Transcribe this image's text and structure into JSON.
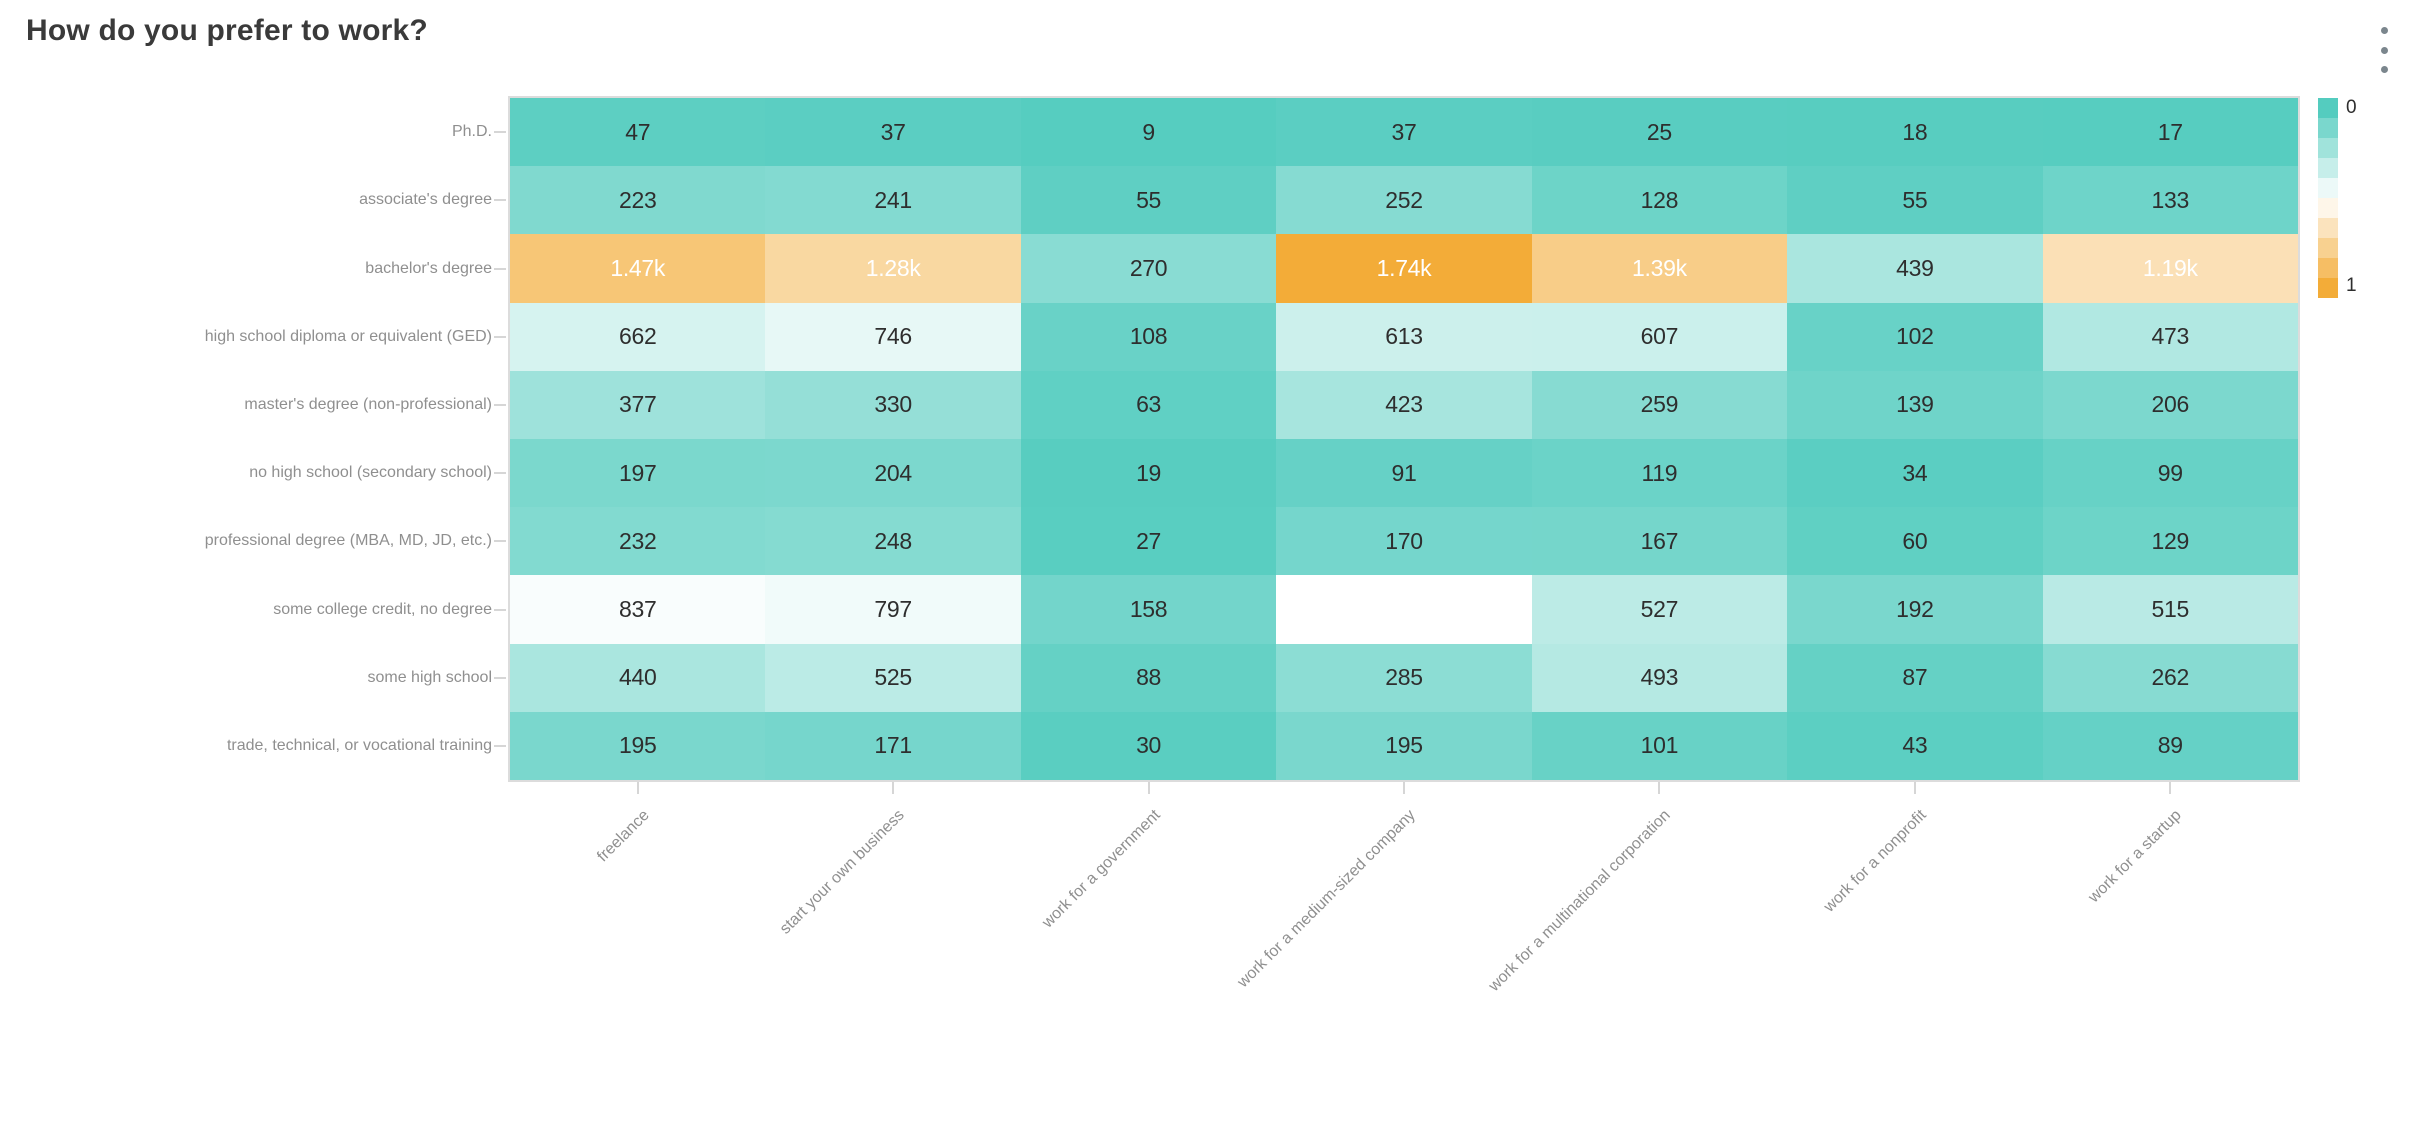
{
  "header": {
    "title": "How do you prefer to work?",
    "menu_icon": "kebab-menu-icon"
  },
  "chart_data": {
    "type": "heatmap",
    "title": "How do you prefer to work?",
    "xlabel": "",
    "ylabel": "",
    "grid": false,
    "legend_position": "right",
    "x_categories": [
      "freelance",
      "start your own business",
      "work for a government",
      "work for a medium-sized company",
      "work for a multinational corporation",
      "work for a nonprofit",
      "work for a startup"
    ],
    "y_categories": [
      "Ph.D.",
      "associate's degree",
      "bachelor's degree",
      "high school diploma or equivalent (GED)",
      "master's degree (non-professional)",
      "no high school (secondary school)",
      "professional degree (MBA, MD, JD, etc.)",
      "some college credit, no degree",
      "some high school",
      "trade, technical, or vocational training"
    ],
    "values": [
      [
        47,
        37,
        9,
        37,
        25,
        18,
        17
      ],
      [
        223,
        241,
        55,
        252,
        128,
        55,
        133
      ],
      [
        1470,
        1280,
        270,
        1740,
        1390,
        439,
        1190
      ],
      [
        662,
        746,
        108,
        613,
        607,
        102,
        473
      ],
      [
        377,
        330,
        63,
        423,
        259,
        139,
        206
      ],
      [
        197,
        204,
        19,
        91,
        119,
        34,
        99
      ],
      [
        232,
        248,
        27,
        170,
        167,
        60,
        129
      ],
      [
        837,
        797,
        158,
        null,
        527,
        192,
        515
      ],
      [
        440,
        525,
        88,
        285,
        493,
        87,
        262
      ],
      [
        195,
        171,
        30,
        195,
        101,
        43,
        89
      ]
    ],
    "labels": [
      [
        "47",
        "37",
        "9",
        "37",
        "25",
        "18",
        "17"
      ],
      [
        "223",
        "241",
        "55",
        "252",
        "128",
        "55",
        "133"
      ],
      [
        "1.47k",
        "1.28k",
        "270",
        "1.74k",
        "1.39k",
        "439",
        "1.19k"
      ],
      [
        "662",
        "746",
        "108",
        "613",
        "607",
        "102",
        "473"
      ],
      [
        "377",
        "330",
        "63",
        "423",
        "259",
        "139",
        "206"
      ],
      [
        "197",
        "204",
        "19",
        "91",
        "119",
        "34",
        "99"
      ],
      [
        "232",
        "248",
        "27",
        "170",
        "167",
        "60",
        "129"
      ],
      [
        "837",
        "797",
        "158",
        "",
        "527",
        "192",
        "515"
      ],
      [
        "440",
        "525",
        "88",
        "285",
        "493",
        "87",
        "262"
      ],
      [
        "195",
        "171",
        "30",
        "195",
        "101",
        "43",
        "89"
      ]
    ],
    "color_scale": {
      "min": 0,
      "max": 1740,
      "start_color": "#54ccbf",
      "mid_color": "#ffffff",
      "end_color": "#f3ac38"
    },
    "legend": {
      "min_label": "0",
      "max_label": "1",
      "steps": 10
    }
  }
}
